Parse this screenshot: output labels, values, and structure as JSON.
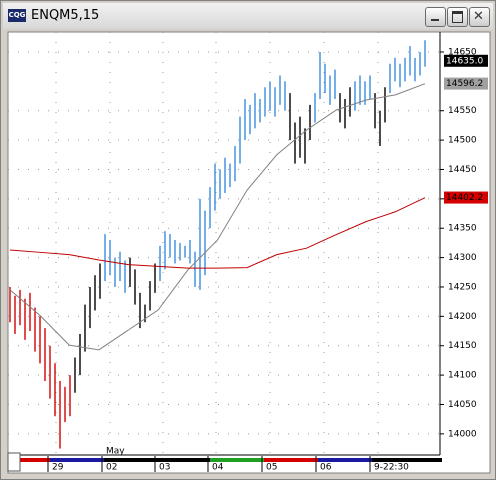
{
  "window_title": "ENQM5,15",
  "app_icon": "CQG",
  "chart_data": {
    "type": "ohlc",
    "ylim": [
      13964,
      14684
    ],
    "yticks": [
      14000,
      14050,
      14100,
      14150,
      14200,
      14250,
      14300,
      14350,
      14400,
      14450,
      14500,
      14550,
      14650
    ],
    "grid": true,
    "palette": {
      "red": "#d40000",
      "black": "#000000",
      "blue": "#3c8ce0"
    },
    "high": [
      14250,
      14235,
      14245,
      14230,
      14240,
      14215,
      14200,
      14180,
      14150,
      14120,
      14090,
      14080,
      14100,
      14130,
      14170,
      14220,
      14250,
      14270,
      14290,
      14340,
      14330,
      14300,
      14310,
      14295,
      14300,
      14280,
      14240,
      14220,
      14260,
      14290,
      14320,
      14345,
      14340,
      14330,
      14325,
      14320,
      14330,
      14310,
      14400,
      14380,
      14420,
      14460,
      14450,
      14470,
      14460,
      14490,
      14540,
      14570,
      14560,
      14580,
      14570,
      14590,
      14600,
      14590,
      14610,
      14600,
      14580,
      14530,
      14540,
      14520,
      14560,
      14580,
      14650,
      14630,
      14610,
      14620,
      14580,
      14570,
      14590,
      14600,
      14610,
      14600,
      14610,
      14580,
      14550,
      14590,
      14630,
      14640,
      14630,
      14640,
      14660,
      14640,
      14650,
      14670
    ],
    "low": [
      14190,
      14170,
      14185,
      14160,
      14175,
      14140,
      14120,
      14090,
      14060,
      14030,
      13975,
      14020,
      14030,
      14070,
      14100,
      14140,
      14180,
      14210,
      14230,
      14260,
      14270,
      14250,
      14260,
      14240,
      14250,
      14220,
      14180,
      14190,
      14210,
      14240,
      14260,
      14280,
      14300,
      14290,
      14295,
      14300,
      14290,
      14250,
      14245,
      14270,
      14350,
      14380,
      14400,
      14410,
      14420,
      14430,
      14460,
      14500,
      14510,
      14520,
      14530,
      14540,
      14550,
      14540,
      14560,
      14550,
      14500,
      14460,
      14470,
      14460,
      14500,
      14530,
      14570,
      14580,
      14560,
      14570,
      14530,
      14520,
      14540,
      14550,
      14560,
      14560,
      14570,
      14520,
      14490,
      14530,
      14580,
      14600,
      14590,
      14600,
      14610,
      14600,
      14610,
      14625
    ],
    "bar_colors": [
      "red",
      "red",
      "red",
      "red",
      "red",
      "red",
      "red",
      "red",
      "red",
      "red",
      "red",
      "red",
      "red",
      "black",
      "black",
      "black",
      "black",
      "black",
      "black",
      "blue",
      "blue",
      "blue",
      "blue",
      "blue",
      "black",
      "black",
      "black",
      "black",
      "black",
      "black",
      "blue",
      "blue",
      "blue",
      "blue",
      "blue",
      "blue",
      "blue",
      "blue",
      "blue",
      "blue",
      "blue",
      "blue",
      "blue",
      "blue",
      "blue",
      "blue",
      "blue",
      "blue",
      "blue",
      "blue",
      "blue",
      "blue",
      "blue",
      "blue",
      "blue",
      "blue",
      "black",
      "black",
      "black",
      "black",
      "black",
      "blue",
      "blue",
      "blue",
      "blue",
      "blue",
      "black",
      "black",
      "black",
      "blue",
      "blue",
      "blue",
      "blue",
      "black",
      "black",
      "black",
      "blue",
      "blue",
      "blue",
      "blue",
      "blue",
      "blue",
      "blue",
      "blue"
    ],
    "lines": [
      {
        "color": "#808080",
        "values": [
          14245,
          14202,
          14151,
          14143,
          14177,
          14211,
          14279,
          14330,
          14415,
          14475,
          14517,
          14551,
          14568,
          14577,
          14596
        ]
      },
      {
        "color": "#c00000",
        "values": [
          14313,
          14309,
          14305,
          14296,
          14288,
          14285,
          14282,
          14282,
          14283,
          14305,
          14316,
          14339,
          14361,
          14378,
          14402
        ]
      }
    ],
    "markers": [
      {
        "value": 14635,
        "label": "14635.0",
        "color": "#000000",
        "text_color": "#ffffff"
      },
      {
        "value": 14596.2,
        "label": "14596.2",
        "color": "#a0a0a0",
        "text_color": "#000000"
      },
      {
        "value": 14402.2,
        "label": "14402.2",
        "color": "#d40000",
        "text_color": "#000000"
      }
    ],
    "month_label": "May",
    "sessions": [
      {
        "label": "29",
        "color": "#1a1aa0"
      },
      {
        "label": "02",
        "color": "#000000"
      },
      {
        "label": "03",
        "color": "#000000"
      },
      {
        "label": "04",
        "color": "#20a020"
      },
      {
        "label": "05",
        "color": "#d40000"
      },
      {
        "label": "06",
        "color": "#1a1aa0"
      },
      {
        "label": "9-22:30",
        "color": "#000000"
      }
    ]
  }
}
